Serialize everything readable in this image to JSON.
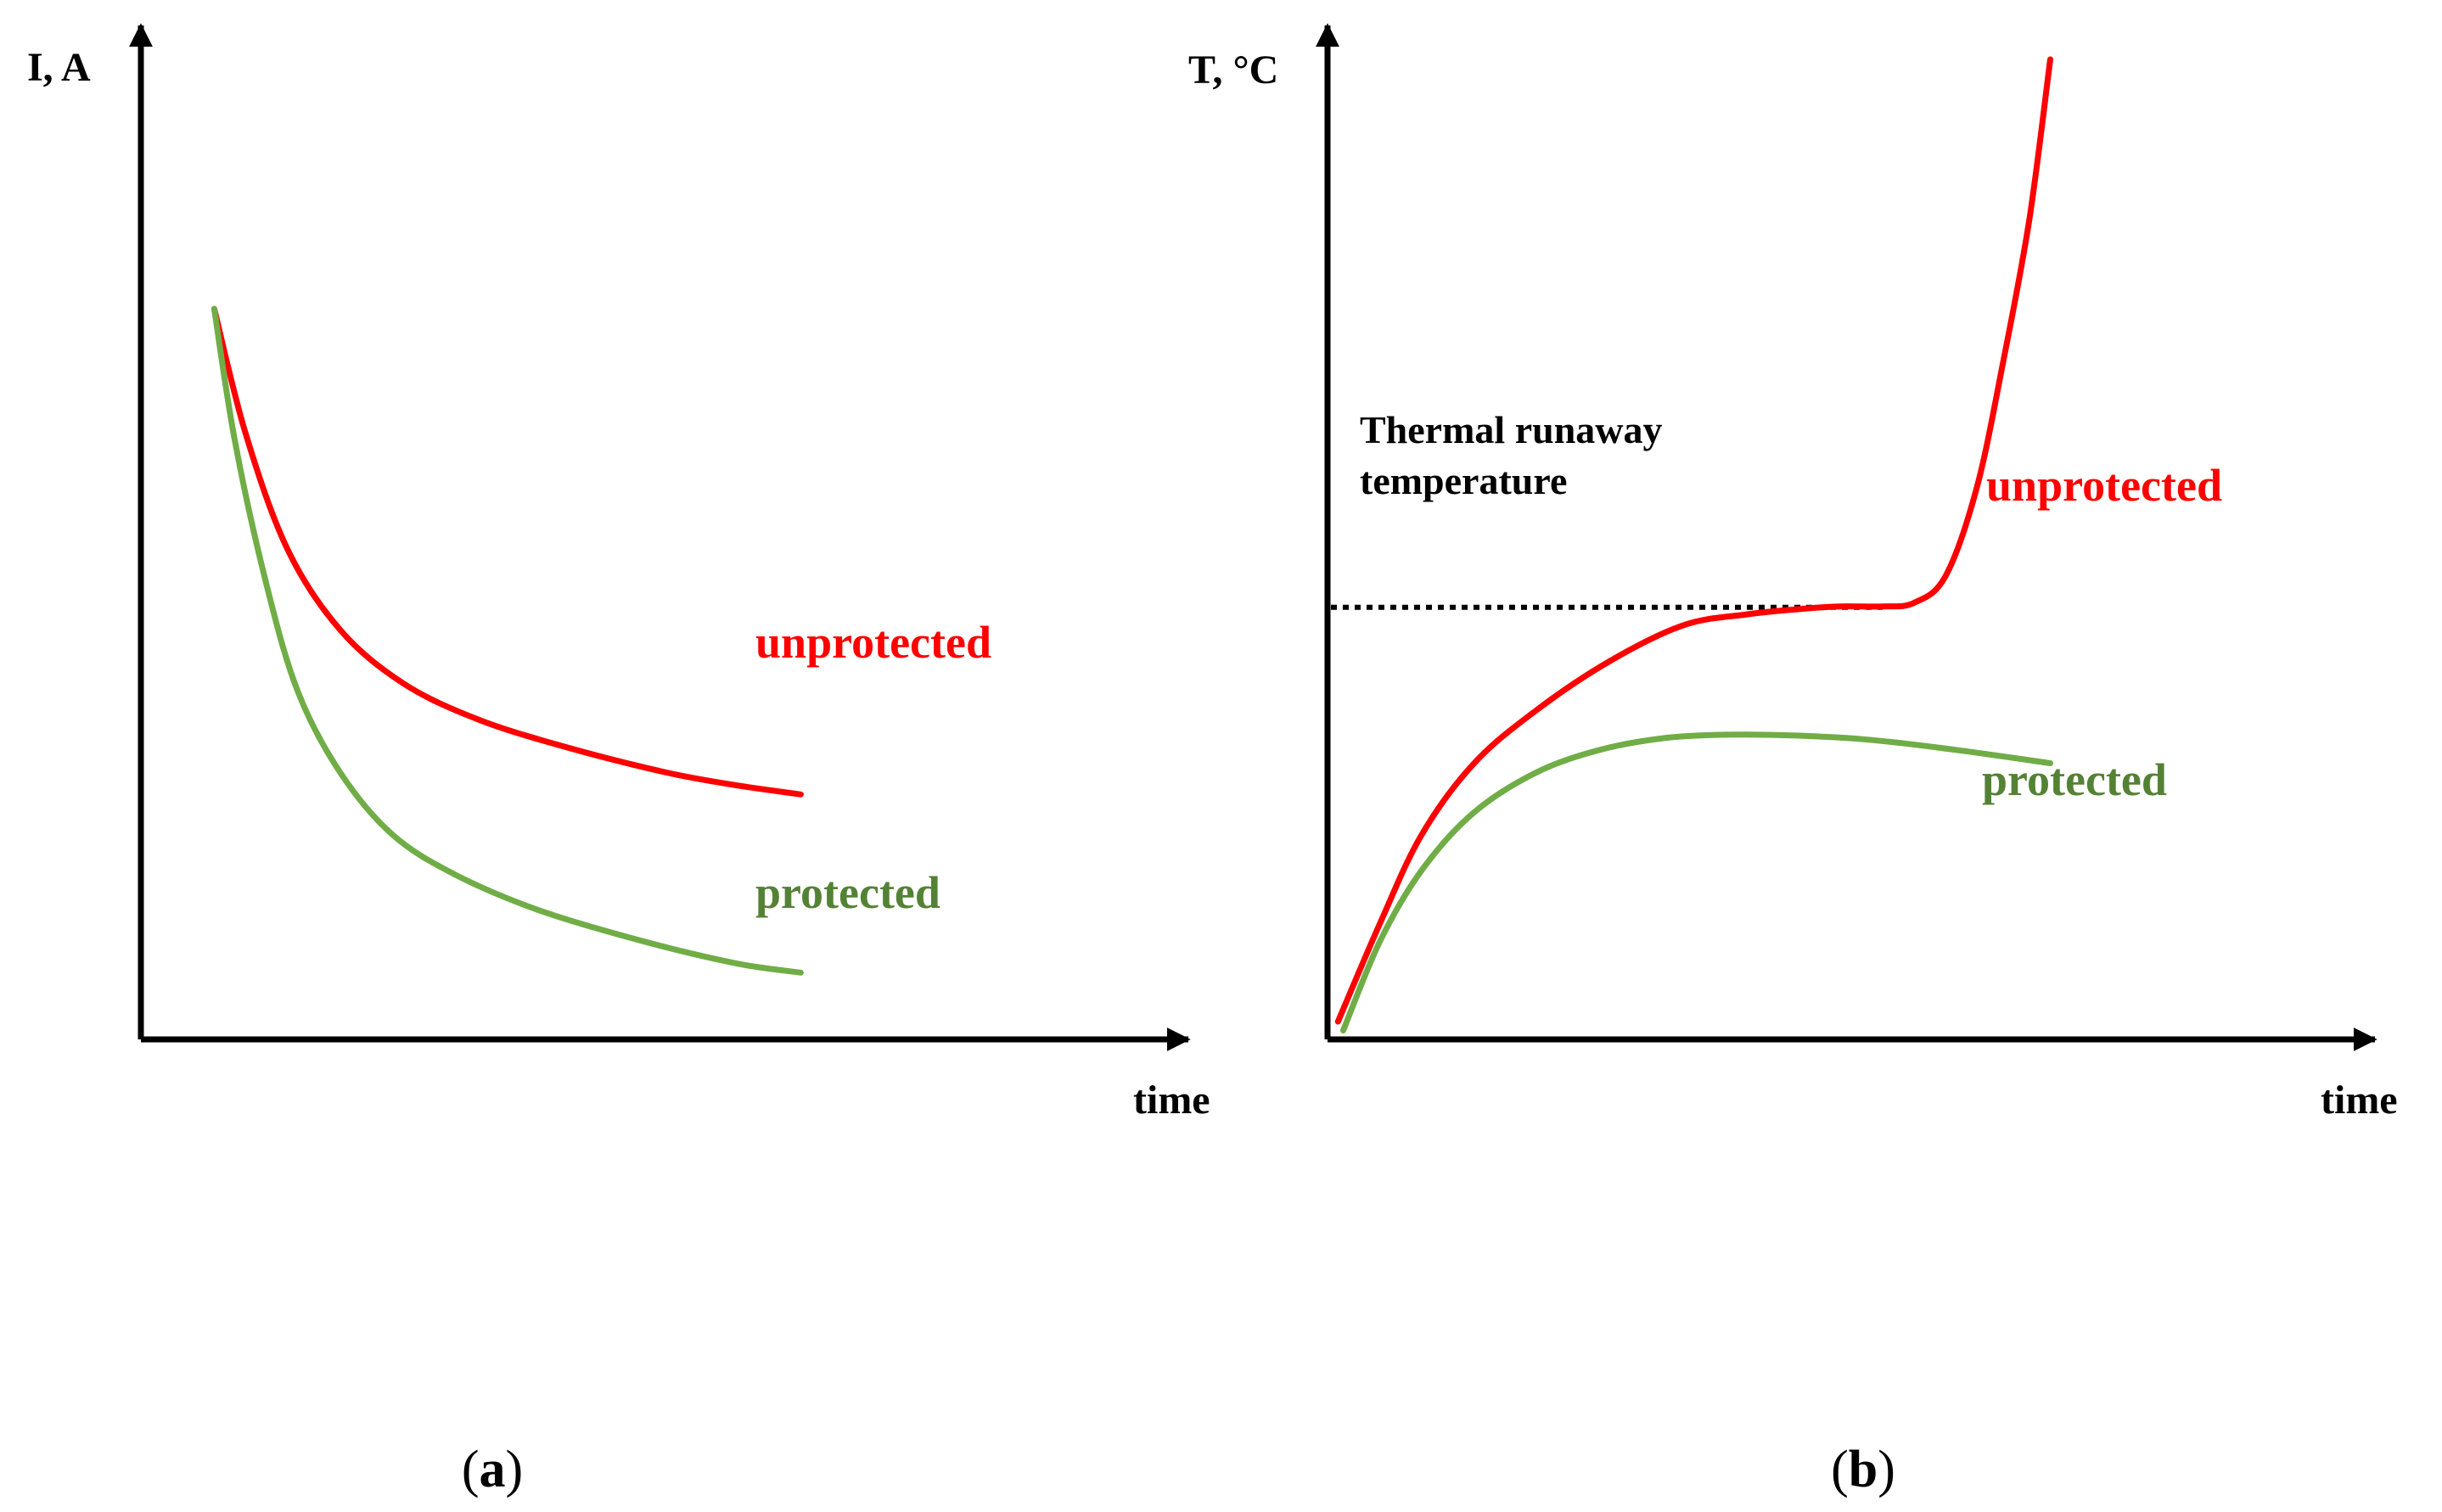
{
  "colors": {
    "unprotected": "#ff0000",
    "protected_line": "#70ad47",
    "protected_text": "#548235",
    "axis": "#000000",
    "threshold": "#000000"
  },
  "chart_data": [
    {
      "type": "line",
      "panel": "a",
      "caption": {
        "open": "(",
        "letter": "a",
        "close": ")"
      },
      "ylabel": "I, A",
      "xlabel": "time",
      "xlim": [
        0,
        100
      ],
      "ylim": [
        0,
        100
      ],
      "ticks": "none",
      "grid": false,
      "series": [
        {
          "name": "unprotected",
          "label": "unprotected",
          "color": "#ff0000",
          "x": [
            7,
            10,
            14,
            19,
            25,
            32,
            40,
            50,
            57,
            63
          ],
          "y": [
            82,
            68,
            55,
            46,
            40,
            36,
            33,
            30,
            28.5,
            27.5
          ]
        },
        {
          "name": "protected",
          "label": "protected",
          "color": "#70ad47",
          "label_color": "#548235",
          "x": [
            7,
            9,
            12,
            15,
            19,
            24,
            30,
            38,
            48,
            57,
            63
          ],
          "y": [
            82,
            67,
            51,
            39,
            30,
            23,
            18.5,
            14.5,
            11,
            8.5,
            7.5
          ]
        }
      ]
    },
    {
      "type": "line",
      "panel": "b",
      "caption": {
        "open": "(",
        "letter": "b",
        "close": ")"
      },
      "ylabel": "T, °C",
      "xlabel": "time",
      "xlim": [
        0,
        100
      ],
      "ylim": [
        0,
        100
      ],
      "ticks": "none",
      "grid": false,
      "annotation": {
        "line1": "Thermal runaway",
        "line2": "temperature"
      },
      "threshold": {
        "y": 48.5,
        "x_start": 0,
        "x_end": 53
      },
      "series": [
        {
          "name": "unprotected",
          "label": "unprotected",
          "color": "#ff0000",
          "x": [
            1,
            5,
            9,
            14,
            20,
            27,
            34,
            40,
            45,
            49,
            53,
            56,
            59,
            62,
            64.5,
            67,
            69
          ],
          "y": [
            2,
            13,
            23,
            31,
            37,
            42.5,
            46.5,
            47.7,
            48.3,
            48.6,
            48.6,
            49,
            52,
            62,
            76,
            92,
            110
          ]
        },
        {
          "name": "protected",
          "label": "protected",
          "color": "#70ad47",
          "label_color": "#548235",
          "x": [
            1.5,
            5,
            9,
            14,
            20,
            26,
            32,
            38,
            45,
            52,
            60,
            69
          ],
          "y": [
            1,
            11,
            19,
            25.5,
            30,
            32.5,
            33.8,
            34.2,
            34.1,
            33.6,
            32.5,
            31
          ]
        }
      ]
    }
  ]
}
